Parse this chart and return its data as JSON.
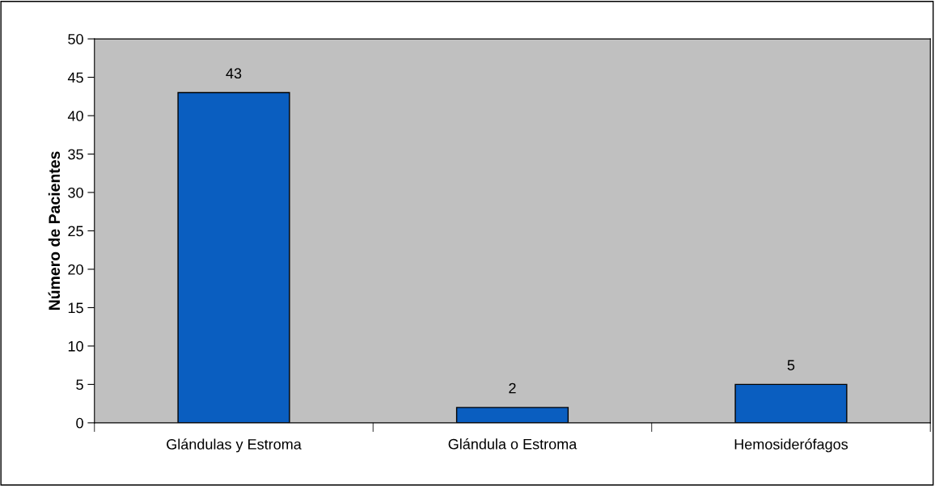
{
  "chart_data": {
    "type": "bar",
    "ylabel": "Número de Pacientes",
    "categories": [
      "Glándulas y Estroma",
      "Glándula o Estroma",
      "Hemosiderófagos"
    ],
    "values": [
      43,
      2,
      5
    ],
    "color": "#0a5ec0",
    "ylim": [
      0,
      50
    ],
    "yticks": [
      0,
      5,
      10,
      15,
      20,
      25,
      30,
      35,
      40,
      45,
      50
    ],
    "data_labels": true,
    "grid": false,
    "legend": false
  }
}
